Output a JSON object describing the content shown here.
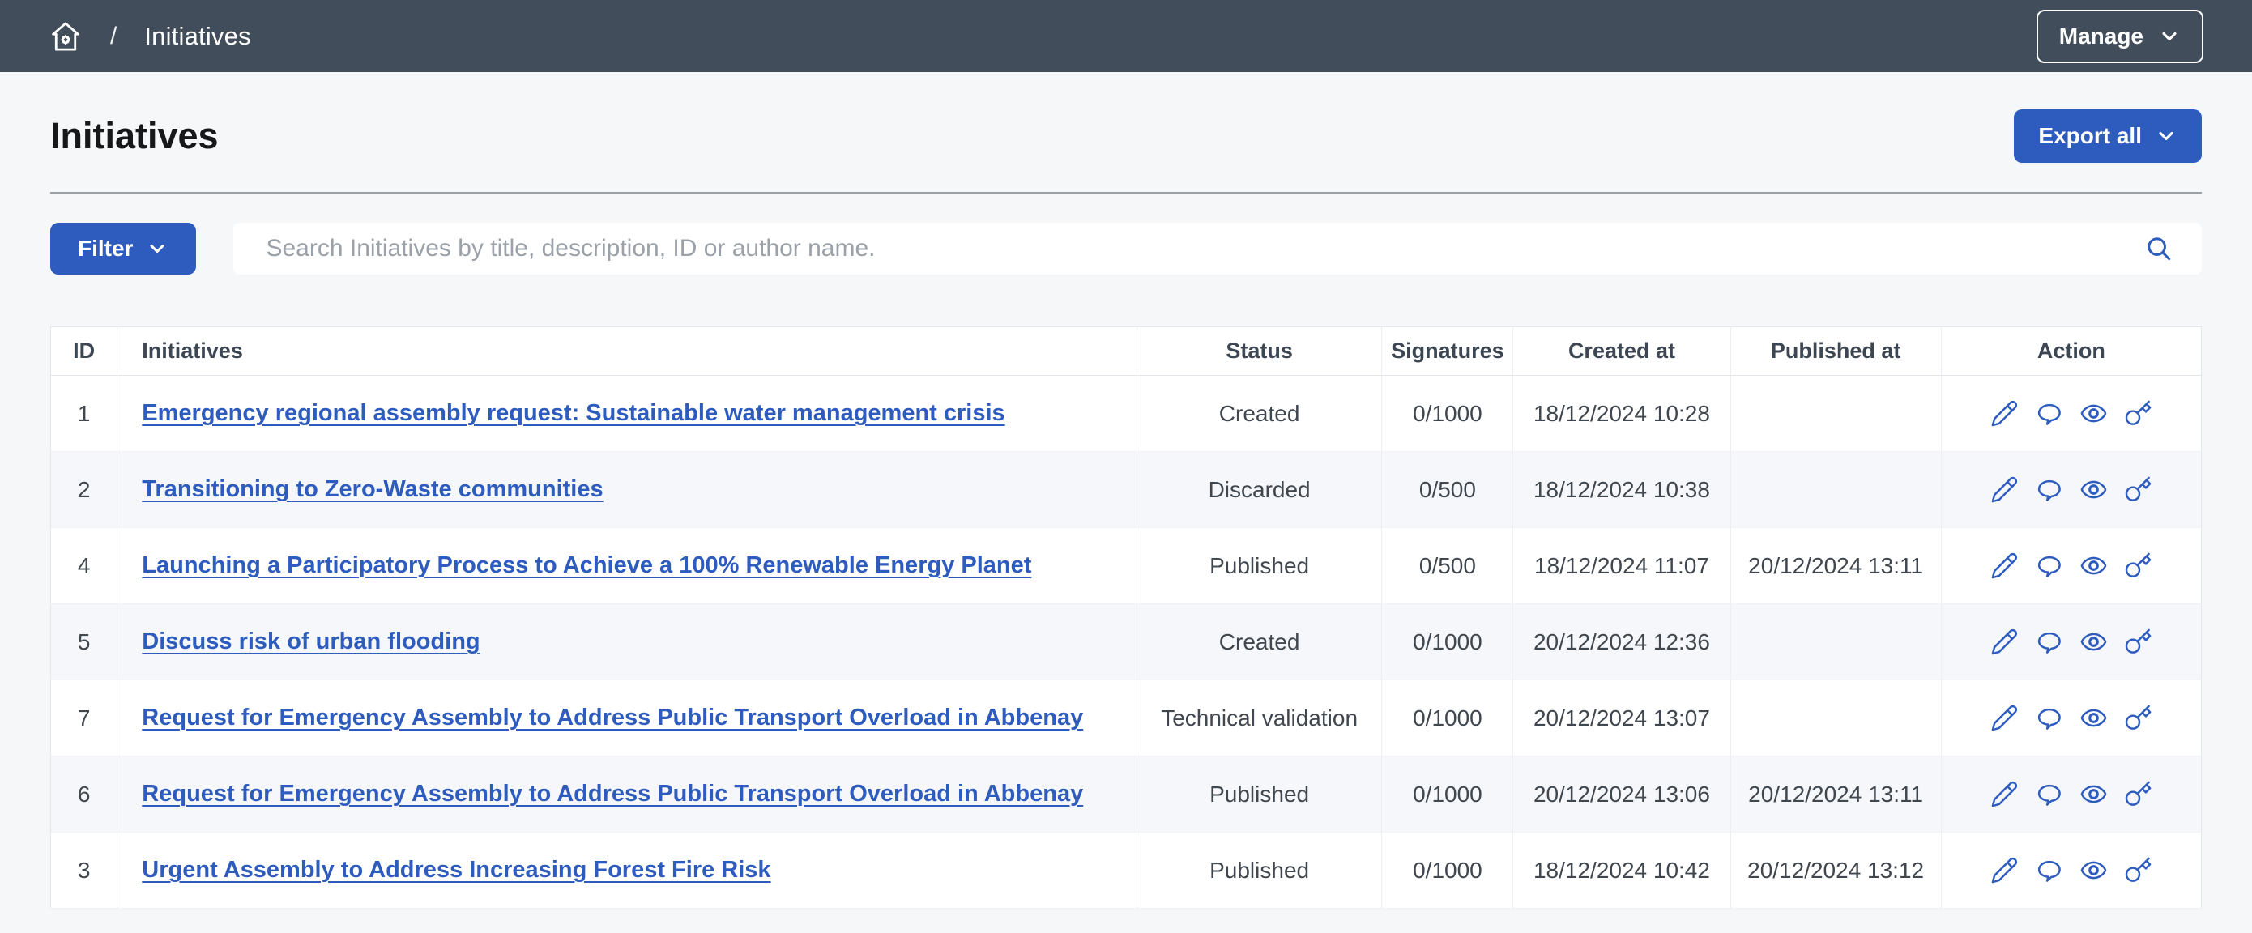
{
  "topbar": {
    "breadcrumb_separator": "/",
    "breadcrumb_current": "Initiatives",
    "manage_label": "Manage"
  },
  "header": {
    "title": "Initiatives",
    "export_label": "Export all"
  },
  "toolbar": {
    "filter_label": "Filter",
    "search_placeholder": "Search Initiatives by title, description, ID or author name."
  },
  "table": {
    "columns": [
      "ID",
      "Initiatives",
      "Status",
      "Signatures",
      "Created at",
      "Published at",
      "Action"
    ],
    "action_icons": [
      "edit-icon",
      "answer-icon",
      "preview-icon",
      "permissions-icon"
    ],
    "rows": [
      {
        "id": "1",
        "title": "Emergency regional assembly request: Sustainable water management crisis",
        "status": "Created",
        "signatures": "0/1000",
        "created_at": "18/12/2024 10:28",
        "published_at": ""
      },
      {
        "id": "2",
        "title": "Transitioning to Zero-Waste communities",
        "status": "Discarded",
        "signatures": "0/500",
        "created_at": "18/12/2024 10:38",
        "published_at": ""
      },
      {
        "id": "4",
        "title": "Launching a Participatory Process to Achieve a 100% Renewable Energy Planet",
        "status": "Published",
        "signatures": "0/500",
        "created_at": "18/12/2024 11:07",
        "published_at": "20/12/2024 13:11"
      },
      {
        "id": "5",
        "title": "Discuss risk of urban flooding",
        "status": "Created",
        "signatures": "0/1000",
        "created_at": "20/12/2024 12:36",
        "published_at": ""
      },
      {
        "id": "7",
        "title": "Request for Emergency Assembly to Address Public Transport Overload in Abbenay",
        "status": "Technical validation",
        "signatures": "0/1000",
        "created_at": "20/12/2024 13:07",
        "published_at": ""
      },
      {
        "id": "6",
        "title": "Request for Emergency Assembly to Address Public Transport Overload in Abbenay",
        "status": "Published",
        "signatures": "0/1000",
        "created_at": "20/12/2024 13:06",
        "published_at": "20/12/2024 13:11"
      },
      {
        "id": "3",
        "title": "Urgent Assembly to Address Increasing Forest Fire Risk",
        "status": "Published",
        "signatures": "0/1000",
        "created_at": "18/12/2024 10:42",
        "published_at": "20/12/2024 13:12"
      }
    ]
  },
  "colors": {
    "topbar_bg": "#414d5b",
    "primary_blue": "#2e5cbe",
    "page_bg": "#f6f7f9",
    "row_alt_bg": "#f5f7fa",
    "header_text": "#3d4653"
  }
}
